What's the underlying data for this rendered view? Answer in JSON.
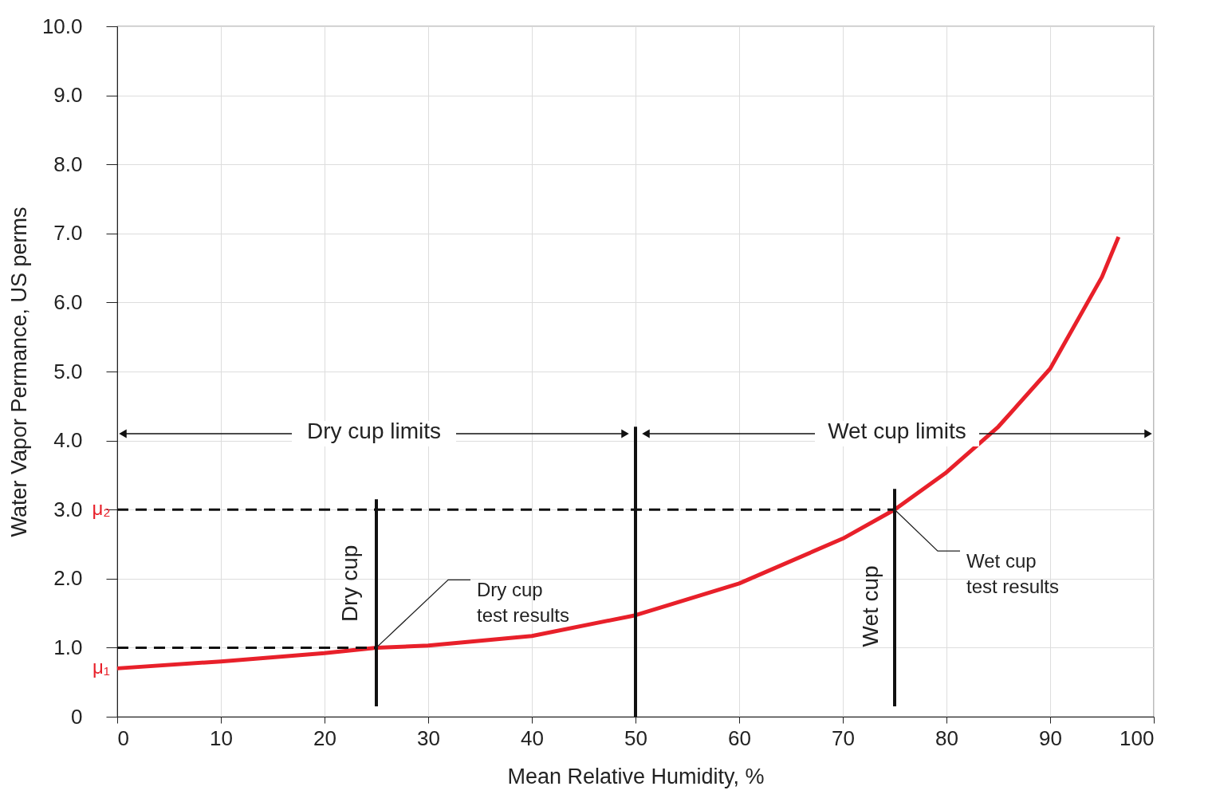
{
  "chart_data": {
    "type": "line",
    "xlabel": "Mean Relative Humidity, %",
    "ylabel": "Water Vapor Permance, US perms",
    "xlim": [
      0,
      100
    ],
    "xticks": [
      0,
      10,
      20,
      30,
      40,
      50,
      60,
      70,
      80,
      90,
      100
    ],
    "ylim": [
      0,
      10
    ],
    "yticks": [
      0,
      {
        "value": 1,
        "label": "1.0"
      },
      {
        "value": 2,
        "label": "2.0"
      },
      {
        "value": 3,
        "label": "3.0"
      },
      {
        "value": 4,
        "label": "4.0"
      },
      {
        "value": 5,
        "label": "5.0"
      },
      {
        "value": 6,
        "label": "6.0"
      },
      {
        "value": 7,
        "label": "7.0"
      },
      {
        "value": 8,
        "label": "8.0"
      },
      {
        "value": 9,
        "label": "9.0"
      },
      {
        "value": 10,
        "label": "10.0"
      }
    ],
    "grid": true,
    "series": [
      {
        "color": "#e8202a",
        "line_style": "solid",
        "x": [
          0,
          10,
          20,
          25,
          30,
          40,
          50,
          60,
          70,
          75,
          80,
          85,
          90,
          95,
          96.6
        ],
        "values": [
          0.7,
          0.8,
          0.92,
          1.0,
          1.03,
          1.17,
          1.47,
          1.93,
          2.58,
          3.0,
          3.54,
          4.2,
          5.04,
          6.37,
          6.95
        ]
      },
      {
        "color": "#111111",
        "line_style": "dashed",
        "x": [
          0,
          25
        ],
        "values": [
          1.0,
          1.0
        ]
      },
      {
        "color": "#111111",
        "line_style": "dashed",
        "x": [
          0,
          75
        ],
        "values": [
          3.0,
          3.0
        ]
      },
      {
        "color": "#111111",
        "line_style": "solid",
        "x": [
          25,
          25
        ],
        "values": [
          0.15,
          3.15
        ]
      },
      {
        "color": "#111111",
        "line_style": "solid",
        "x": [
          50,
          50
        ],
        "values": [
          0,
          4.2
        ]
      },
      {
        "color": "#111111",
        "line_style": "solid",
        "x": [
          75,
          75
        ],
        "values": [
          0.15,
          3.3
        ]
      }
    ],
    "annotations": [
      {
        "text": "μ₂",
        "x": 0,
        "y": 3.0
      },
      {
        "text": "μ₁",
        "x": 0,
        "y": 0.7
      },
      "Dry cup",
      "Wet cup",
      {
        "text": "Dry cup\ntest results",
        "x": 25,
        "y": 1.0
      },
      {
        "text": "Wet cup\ntest results",
        "x": 75,
        "y": 3.0
      },
      "Dry cup limits",
      "Wet cup limits"
    ]
  }
}
